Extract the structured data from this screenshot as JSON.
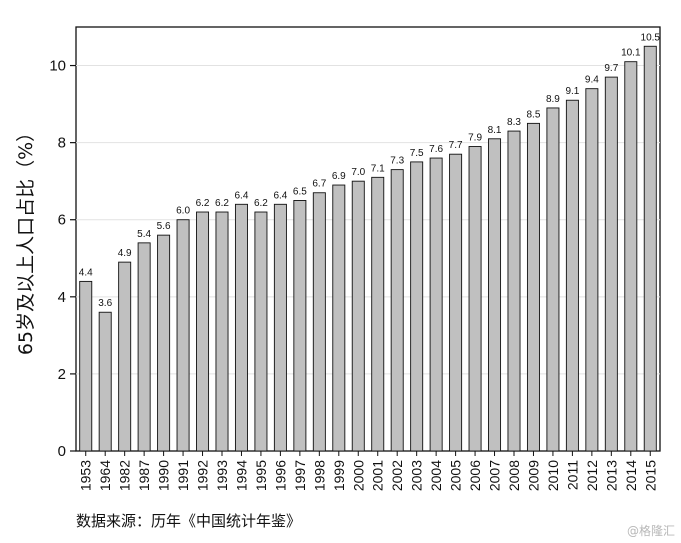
{
  "chart_data": {
    "type": "bar",
    "ylabel": "65岁及以上人口占比（%）",
    "categories": [
      "1953",
      "1964",
      "1982",
      "1987",
      "1990",
      "1991",
      "1992",
      "1993",
      "1994",
      "1995",
      "1996",
      "1997",
      "1998",
      "1999",
      "2000",
      "2001",
      "2002",
      "2003",
      "2004",
      "2005",
      "2006",
      "2007",
      "2008",
      "2009",
      "2010",
      "2011",
      "2012",
      "2013",
      "2014",
      "2015"
    ],
    "values": [
      4.4,
      3.6,
      4.9,
      5.4,
      5.6,
      6.0,
      6.2,
      6.2,
      6.4,
      6.2,
      6.4,
      6.5,
      6.7,
      6.9,
      7.0,
      7.1,
      7.3,
      7.5,
      7.6,
      7.7,
      7.9,
      8.1,
      8.3,
      8.5,
      8.9,
      9.1,
      9.4,
      9.7,
      10.1,
      10.5
    ],
    "data_labels": [
      "4.4",
      "3.6",
      "4.9",
      "5.4",
      "5.6",
      "6.0",
      "6.2",
      "6.2",
      "6.4",
      "6.2",
      "6.4",
      "6.5",
      "6.7",
      "6.9",
      "7.0",
      "7.1",
      "7.3",
      "7.5",
      "7.6",
      "7.7",
      "7.9",
      "8.1",
      "8.3",
      "8.5",
      "8.9",
      "9.1",
      "9.4",
      "9.7",
      "10.1",
      "10.5"
    ],
    "yticks": [
      0,
      2,
      4,
      6,
      8,
      10
    ],
    "ylim": [
      0,
      11
    ],
    "grid": true,
    "bar_color": "#c0c0c0",
    "bar_edge_color": "#111111"
  },
  "source_text": "数据来源：历年《中国统计年鉴》",
  "watermark": "@格隆汇"
}
